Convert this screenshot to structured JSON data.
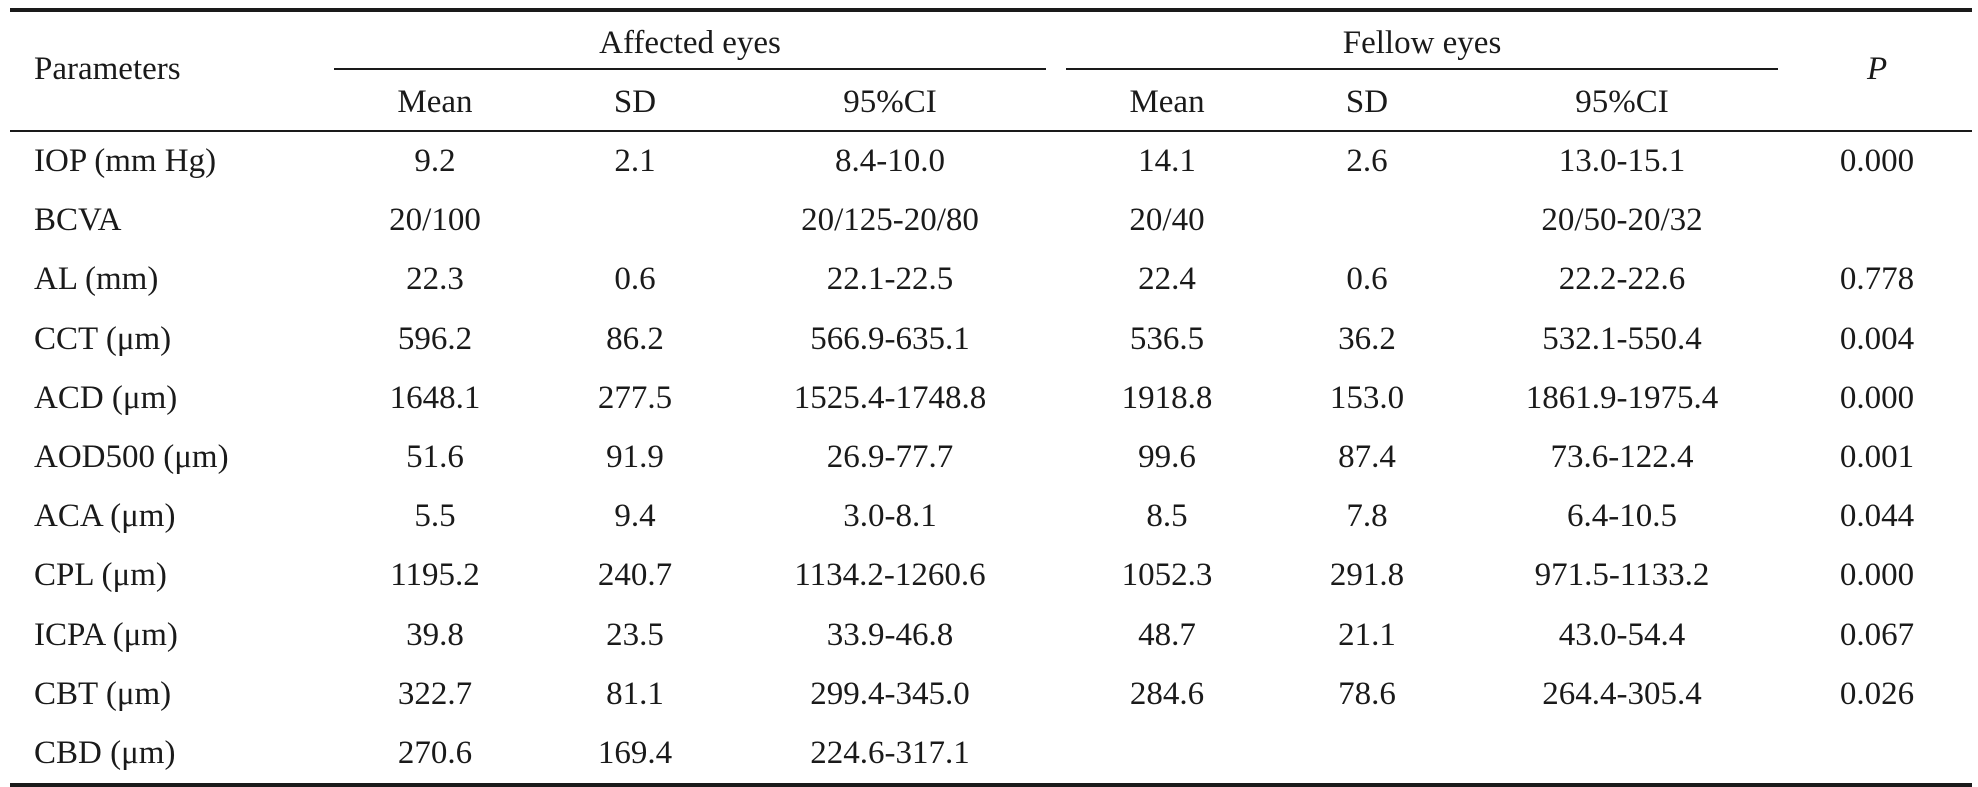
{
  "header": {
    "parameters": "Parameters",
    "affected_group": "Affected eyes",
    "fellow_group": "Fellow eyes",
    "p": "P",
    "sub": [
      "Mean",
      "SD",
      "95%CI",
      "Mean",
      "SD",
      "95%CI"
    ]
  },
  "rows": [
    {
      "param": "IOP (mm Hg)",
      "a_mean": "9.2",
      "a_sd": "2.1",
      "a_ci": "8.4-10.0",
      "f_mean": "14.1",
      "f_sd": "2.6",
      "f_ci": "13.0-15.1",
      "p": "0.000"
    },
    {
      "param": "BCVA",
      "a_mean": "20/100",
      "a_sd": "",
      "a_ci": "20/125-20/80",
      "f_mean": "20/40",
      "f_sd": "",
      "f_ci": "20/50-20/32",
      "p": ""
    },
    {
      "param": "AL (mm)",
      "a_mean": "22.3",
      "a_sd": "0.6",
      "a_ci": "22.1-22.5",
      "f_mean": "22.4",
      "f_sd": "0.6",
      "f_ci": "22.2-22.6",
      "p": "0.778"
    },
    {
      "param": "CCT (μm)",
      "a_mean": "596.2",
      "a_sd": "86.2",
      "a_ci": "566.9-635.1",
      "f_mean": "536.5",
      "f_sd": "36.2",
      "f_ci": "532.1-550.4",
      "p": "0.004"
    },
    {
      "param": "ACD (μm)",
      "a_mean": "1648.1",
      "a_sd": "277.5",
      "a_ci": "1525.4-1748.8",
      "f_mean": "1918.8",
      "f_sd": "153.0",
      "f_ci": "1861.9-1975.4",
      "p": "0.000"
    },
    {
      "param": "AOD500 (μm)",
      "a_mean": "51.6",
      "a_sd": "91.9",
      "a_ci": "26.9-77.7",
      "f_mean": "99.6",
      "f_sd": "87.4",
      "f_ci": "73.6-122.4",
      "p": "0.001"
    },
    {
      "param": "ACA (μm)",
      "a_mean": "5.5",
      "a_sd": "9.4",
      "a_ci": "3.0-8.1",
      "f_mean": "8.5",
      "f_sd": "7.8",
      "f_ci": "6.4-10.5",
      "p": "0.044"
    },
    {
      "param": "CPL (μm)",
      "a_mean": "1195.2",
      "a_sd": "240.7",
      "a_ci": "1134.2-1260.6",
      "f_mean": "1052.3",
      "f_sd": "291.8",
      "f_ci": "971.5-1133.2",
      "p": "0.000"
    },
    {
      "param": "ICPA (μm)",
      "a_mean": "39.8",
      "a_sd": "23.5",
      "a_ci": "33.9-46.8",
      "f_mean": "48.7",
      "f_sd": "21.1",
      "f_ci": "43.0-54.4",
      "p": "0.067"
    },
    {
      "param": "CBT (μm)",
      "a_mean": "322.7",
      "a_sd": "81.1",
      "a_ci": "299.4-345.0",
      "f_mean": "284.6",
      "f_sd": "78.6",
      "f_ci": "264.4-305.4",
      "p": "0.026"
    },
    {
      "param": "CBD (μm)",
      "a_mean": "270.6",
      "a_sd": "169.4",
      "a_ci": "224.6-317.1",
      "f_mean": "",
      "f_sd": "",
      "f_ci": "",
      "p": ""
    }
  ]
}
